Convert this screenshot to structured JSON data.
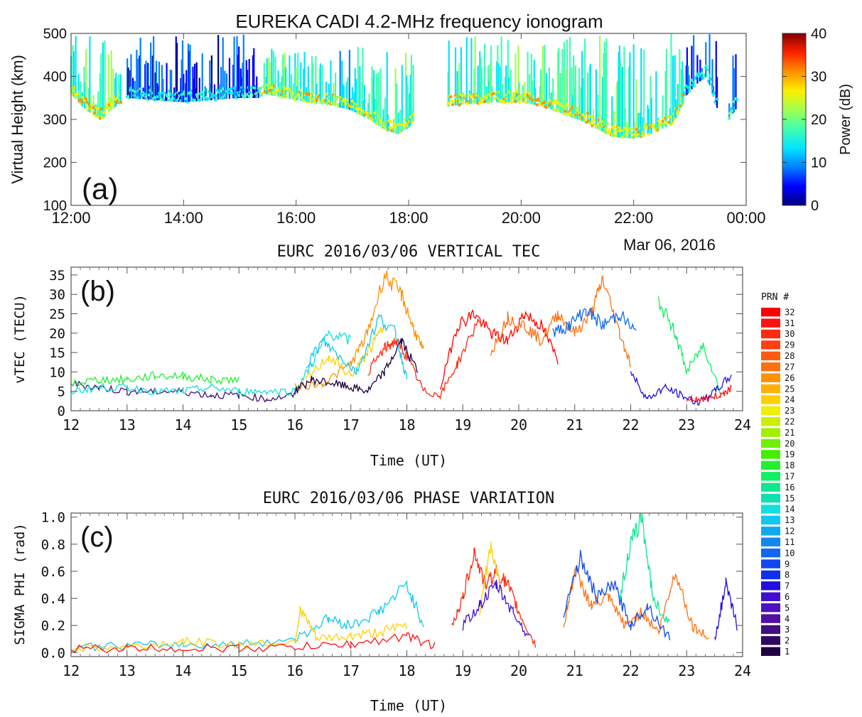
{
  "chart_data": [
    {
      "panel": "a",
      "type": "scatter",
      "title": "EUREKA CADI 4.2-MHz frequency ionogram",
      "panel_label": "(a)",
      "ylabel": "Virtual Height (km)",
      "xlabel": "",
      "date_label": "Mar 06, 2016",
      "xlim": [
        12,
        24
      ],
      "ylim": [
        100,
        500
      ],
      "xticks": [
        12,
        14,
        16,
        18,
        20,
        22,
        24
      ],
      "xtick_labels": [
        "12:00",
        "14:00",
        "16:00",
        "18:00",
        "20:00",
        "22:00",
        "00:00"
      ],
      "yticks": [
        100,
        200,
        300,
        400,
        500
      ],
      "ytick_labels": [
        "100",
        "200",
        "300",
        "400",
        "500"
      ],
      "colorbar": {
        "label": "Power (dB)",
        "range": [
          0,
          40
        ],
        "ticks": [
          0,
          10,
          20,
          30,
          40
        ],
        "tick_labels": [
          "0",
          "10",
          "20",
          "30",
          "40"
        ],
        "colors": [
          "#00007f",
          "#0000ff",
          "#0080ff",
          "#00e5ff",
          "#40ffb0",
          "#a0ff50",
          "#ffee00",
          "#ff9000",
          "#ff2000",
          "#800000"
        ]
      },
      "traces": [
        {
          "hours": [
            12.0,
            12.2,
            12.4,
            12.55,
            12.7,
            12.9
          ],
          "heights": [
            360,
            330,
            310,
            300,
            320,
            340
          ],
          "top": 500,
          "power": 18
        },
        {
          "hours": [
            13.0,
            13.5,
            14.0,
            14.5,
            15.0,
            15.4
          ],
          "heights": [
            350,
            345,
            340,
            345,
            350,
            350
          ],
          "top": 500,
          "power": 6
        },
        {
          "hours": [
            15.4,
            15.8,
            16.2,
            16.6,
            17.0,
            17.3,
            17.6,
            17.8,
            18.0,
            18.1
          ],
          "heights": [
            360,
            350,
            340,
            335,
            320,
            300,
            275,
            265,
            280,
            300
          ],
          "top": 470,
          "power": 16
        },
        {
          "hours": [
            18.7,
            19.0,
            19.5,
            20.0,
            20.4,
            20.8,
            21.2,
            21.6,
            22.0,
            22.4,
            22.7,
            22.9
          ],
          "heights": [
            330,
            335,
            340,
            340,
            330,
            310,
            290,
            260,
            255,
            270,
            290,
            340
          ],
          "top": 500,
          "power": 17
        },
        {
          "hours": [
            22.9,
            23.1,
            23.3,
            23.5
          ],
          "heights": [
            350,
            380,
            400,
            320
          ],
          "top": 500,
          "power": 5
        },
        {
          "hours": [
            23.7,
            23.85
          ],
          "heights": [
            300,
            330
          ],
          "top": 490,
          "power": 8
        }
      ]
    },
    {
      "panel": "b",
      "type": "line",
      "title": "EURC 2016/03/06  VERTICAL TEC",
      "panel_label": "(b)",
      "xlabel": "Time (UT)",
      "ylabel": "vTEC (TECU)",
      "xlim": [
        12,
        24
      ],
      "ylim": [
        0,
        37
      ],
      "xticks": [
        12,
        13,
        14,
        15,
        16,
        17,
        18,
        19,
        20,
        21,
        22,
        23,
        24
      ],
      "xtick_labels": [
        "12",
        "13",
        "14",
        "15",
        "16",
        "17",
        "18",
        "19",
        "20",
        "21",
        "22",
        "23",
        "24"
      ],
      "yticks": [
        0,
        5,
        10,
        15,
        20,
        25,
        30,
        35
      ],
      "ytick_labels": [
        "0",
        "5",
        "10",
        "15",
        "20",
        "25",
        "30",
        "35"
      ],
      "series": [
        {
          "prn": 3,
          "x": [
            12,
            12.5,
            13,
            13.5,
            14,
            14.5,
            15,
            15.5,
            16
          ],
          "y": [
            7,
            6,
            5,
            5,
            5,
            4,
            4,
            3,
            4
          ]
        },
        {
          "prn": 14,
          "x": [
            12,
            12.5,
            13,
            13.5,
            14,
            14.5,
            15,
            15.5,
            16,
            16.3,
            16.6,
            17.0
          ],
          "y": [
            5,
            6,
            6,
            5,
            5,
            6,
            5,
            5,
            5,
            12,
            20,
            18
          ]
        },
        {
          "prn": 18,
          "x": [
            12,
            12.5,
            13,
            13.5,
            14,
            14.5,
            15.0
          ],
          "y": [
            7,
            8,
            8,
            9,
            9,
            8,
            8
          ]
        },
        {
          "prn": 26,
          "x": [
            16,
            16.5,
            17.0,
            17.3,
            17.6,
            17.9,
            18.1,
            18.3
          ],
          "y": [
            6,
            7,
            12,
            20,
            35,
            30,
            22,
            15
          ]
        },
        {
          "prn": 24,
          "x": [
            16.2,
            16.6,
            17.0,
            17.3,
            17.6
          ],
          "y": [
            8,
            14,
            9,
            15,
            22
          ]
        },
        {
          "prn": 13,
          "x": [
            16.2,
            16.5,
            16.8,
            17.1,
            17.5,
            17.8,
            18.0
          ],
          "y": [
            12,
            18,
            14,
            10,
            24,
            20,
            8
          ]
        },
        {
          "prn": 30,
          "x": [
            17.3,
            17.6,
            17.8,
            18.0,
            18.3,
            18.6,
            18.9,
            19.3
          ],
          "y": [
            10,
            16,
            18,
            14,
            5,
            4,
            12,
            24
          ]
        },
        {
          "prn": 1,
          "x": [
            16.0,
            16.3,
            16.7,
            17.0,
            17.3,
            17.6,
            17.9,
            18.2
          ],
          "y": [
            5,
            8,
            7,
            6,
            5,
            10,
            18,
            10
          ]
        },
        {
          "prn": 32,
          "x": [
            18.6,
            18.9,
            19.2,
            19.5,
            19.8,
            20.1,
            20.4,
            20.7
          ],
          "y": [
            6,
            22,
            25,
            20,
            18,
            25,
            22,
            13
          ]
        },
        {
          "prn": 27,
          "x": [
            19.5,
            19.8,
            20.1,
            20.4,
            20.7,
            21.0,
            21.3,
            21.5,
            21.8,
            22.0
          ],
          "y": [
            15,
            24,
            22,
            18,
            25,
            20,
            25,
            34,
            20,
            12
          ]
        },
        {
          "prn": 10,
          "x": [
            20.6,
            20.9,
            21.2,
            21.5,
            21.8,
            22.1
          ],
          "y": [
            20,
            22,
            26,
            22,
            25,
            20
          ]
        },
        {
          "prn": 17,
          "x": [
            22.5,
            22.8,
            23.0,
            23.3,
            23.6
          ],
          "y": [
            28,
            20,
            10,
            17,
            5
          ]
        },
        {
          "prn": 7,
          "x": [
            22.0,
            22.3,
            22.6,
            22.9,
            23.2,
            23.5,
            23.8
          ],
          "y": [
            10,
            3,
            6,
            4,
            2,
            5,
            9
          ]
        },
        {
          "prn": 31,
          "x": [
            23.0,
            23.3,
            23.6,
            23.8
          ],
          "y": [
            3,
            3,
            4,
            6
          ]
        }
      ]
    },
    {
      "panel": "c",
      "type": "line",
      "title": "EURC 2016/03/06  PHASE VARIATION",
      "panel_label": "(c)",
      "xlabel": "Time (UT)",
      "ylabel": "SIGMA PHI (rad)",
      "xlim": [
        12,
        24
      ],
      "ylim": [
        -0.03,
        1.03
      ],
      "xticks": [
        12,
        13,
        14,
        15,
        16,
        17,
        18,
        19,
        20,
        21,
        22,
        23,
        24
      ],
      "xtick_labels": [
        "12",
        "13",
        "14",
        "15",
        "16",
        "17",
        "18",
        "19",
        "20",
        "21",
        "22",
        "23",
        "24"
      ],
      "yticks": [
        0.0,
        0.2,
        0.4,
        0.6,
        0.8,
        1.0
      ],
      "ytick_labels": [
        "0.0",
        "0.2",
        "0.4",
        "0.6",
        "0.8",
        "1.0"
      ],
      "series": [
        {
          "prn": 13,
          "x": [
            12,
            13,
            14,
            15,
            16,
            16.6,
            17.0,
            17.5,
            18.0,
            18.3
          ],
          "y": [
            0.04,
            0.05,
            0.06,
            0.06,
            0.1,
            0.25,
            0.2,
            0.3,
            0.5,
            0.2
          ]
        },
        {
          "prn": 24,
          "x": [
            12,
            13,
            14,
            15,
            16,
            16.1,
            16.4,
            17,
            17.5,
            18
          ],
          "y": [
            0.03,
            0.04,
            0.08,
            0.06,
            0.08,
            0.32,
            0.1,
            0.12,
            0.15,
            0.2
          ]
        },
        {
          "prn": 30,
          "x": [
            18.8,
            19.0,
            19.2,
            19.4,
            19.6,
            19.8,
            20.0,
            20.3
          ],
          "y": [
            0.2,
            0.4,
            0.75,
            0.5,
            0.6,
            0.5,
            0.3,
            0.05
          ]
        },
        {
          "prn": 24,
          "x": [
            19.3,
            19.5,
            19.7
          ],
          "y": [
            0.3,
            0.8,
            0.4
          ]
        },
        {
          "prn": 6,
          "x": [
            19.0,
            19.3,
            19.6,
            19.9,
            20.2
          ],
          "y": [
            0.2,
            0.35,
            0.5,
            0.3,
            0.1
          ]
        },
        {
          "prn": 27,
          "x": [
            20.8,
            21.0,
            21.3,
            21.6,
            21.9,
            22.2,
            22.5,
            22.8,
            23.1,
            23.4
          ],
          "y": [
            0.2,
            0.6,
            0.35,
            0.4,
            0.2,
            0.3,
            0.15,
            0.6,
            0.2,
            0.1
          ]
        },
        {
          "prn": 9,
          "x": [
            20.8,
            21.1,
            21.4,
            21.7,
            22.0,
            22.3,
            22.7
          ],
          "y": [
            0.3,
            0.7,
            0.4,
            0.5,
            0.2,
            0.35,
            0.1
          ]
        },
        {
          "prn": 16,
          "x": [
            21.8,
            22.0,
            22.2,
            22.4,
            22.7
          ],
          "y": [
            0.4,
            0.8,
            1.0,
            0.4,
            0.2
          ]
        },
        {
          "prn": 7,
          "x": [
            23.5,
            23.7,
            23.9
          ],
          "y": [
            0.1,
            0.5,
            0.2
          ]
        },
        {
          "prn": 31,
          "x": [
            12,
            13,
            14,
            15,
            16,
            17,
            18,
            18.5
          ],
          "y": [
            0.03,
            0.03,
            0.03,
            0.03,
            0.04,
            0.06,
            0.12,
            0.05
          ]
        }
      ]
    }
  ],
  "legend": {
    "title": "PRN  #",
    "labels": [
      "32",
      "31",
      "30",
      "29",
      "28",
      "27",
      "26",
      "25",
      "24",
      "23",
      "22",
      "21",
      "20",
      "19",
      "18",
      "17",
      "16",
      "15",
      "14",
      "13",
      "12",
      "11",
      "10",
      "9",
      "8",
      "7",
      "6",
      "5",
      "4",
      "3",
      "2",
      "1"
    ],
    "colors": [
      "#ff0000",
      "#ff1010",
      "#ff2a10",
      "#ff4010",
      "#ff5a10",
      "#ff7010",
      "#ff9000",
      "#ffb000",
      "#ffd000",
      "#eef000",
      "#c8f000",
      "#a0f000",
      "#70f000",
      "#40f000",
      "#20f030",
      "#10f060",
      "#10e890",
      "#10e0b0",
      "#10e0e0",
      "#10c8f0",
      "#10a8f0",
      "#1088f0",
      "#1068f0",
      "#1048f0",
      "#1030f0",
      "#2010e0",
      "#4010d0",
      "#5010c0",
      "#5010a0",
      "#401080",
      "#300860",
      "#200040"
    ]
  }
}
